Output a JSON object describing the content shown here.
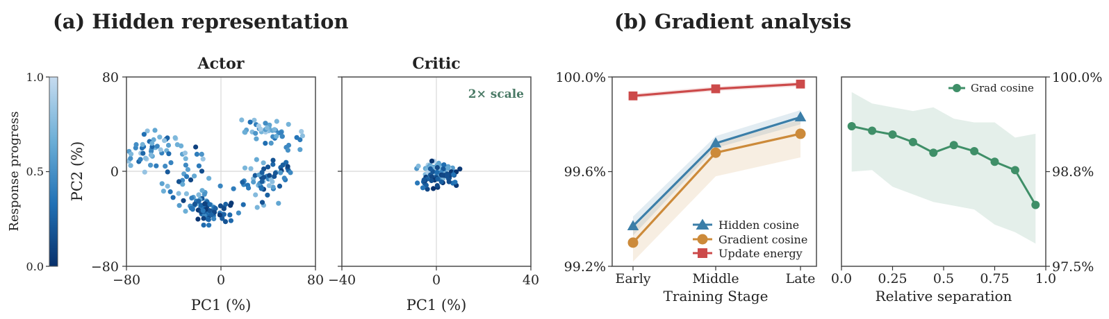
{
  "figure": {
    "panel_a_title": "(a) Hidden representation",
    "panel_b_title": "(b) Gradient analysis"
  },
  "colorbar": {
    "label": "Response progress",
    "ticks": [
      "0.0",
      "0.5",
      "1.0"
    ],
    "range": [
      0,
      1
    ],
    "colors": [
      "#08306b",
      "#2171b5",
      "#6baed6",
      "#c6dbef"
    ]
  },
  "chart_data": [
    {
      "id": "actor",
      "type": "scatter",
      "title": "Actor",
      "xlabel": "PC1 (%)",
      "ylabel": "PC2 (%)",
      "xlim": [
        -80,
        80
      ],
      "ylim": [
        -80,
        80
      ],
      "xticks": [
        "−80",
        "0",
        "80"
      ],
      "yticks": [
        "−80",
        "0",
        "80"
      ],
      "crosshair": true,
      "clusters": [
        {
          "n": 55,
          "cx": -54,
          "cy": 18,
          "sx": 14,
          "sy": 10,
          "c": [
            0.2,
            0.9
          ]
        },
        {
          "n": 40,
          "cx": -26,
          "cy": -14,
          "sx": 11,
          "sy": 12,
          "c": [
            0.05,
            0.8
          ]
        },
        {
          "n": 55,
          "cx": -7,
          "cy": -33,
          "sx": 11,
          "sy": 6,
          "c": [
            0.0,
            0.5
          ]
        },
        {
          "n": 45,
          "cx": 33,
          "cy": -7,
          "sx": 9,
          "sy": 9,
          "c": [
            0.1,
            0.8
          ]
        },
        {
          "n": 40,
          "cx": 40,
          "cy": 35,
          "sx": 11,
          "sy": 5,
          "c": [
            0.3,
            0.9
          ]
        },
        {
          "n": 20,
          "cx": 55,
          "cy": 4,
          "sx": 7,
          "sy": 7,
          "c": [
            0.05,
            0.6
          ]
        }
      ]
    },
    {
      "id": "critic",
      "type": "scatter",
      "title": "Critic",
      "xlabel": "PC1 (%)",
      "ylabel": "",
      "xlim": [
        -40,
        40
      ],
      "ylim": [
        -40,
        40
      ],
      "xticks": [
        "−40",
        "0",
        "40"
      ],
      "annotation": "2× scale",
      "annotation_color": "#4a7a66",
      "crosshair": true,
      "clusters": [
        {
          "n": 80,
          "cx": 1,
          "cy": 0,
          "sx": 3,
          "sy": 1.6,
          "c": [
            0.5,
            0.95
          ]
        },
        {
          "n": 40,
          "cx": 2,
          "cy": -2.5,
          "sx": 4,
          "sy": 2,
          "c": [
            0.0,
            0.5
          ]
        },
        {
          "n": 8,
          "cx": -6,
          "cy": -5,
          "sx": 2,
          "sy": 2,
          "c": [
            0.0,
            0.4
          ]
        }
      ]
    },
    {
      "id": "stage",
      "type": "line",
      "title": "",
      "xlabel": "Training Stage",
      "ylabel": "",
      "categories": [
        "Early",
        "Middle",
        "Late"
      ],
      "ylim": [
        99.2,
        100.0
      ],
      "yticks": [
        "99.2%",
        "99.6%",
        "100.0%"
      ],
      "legend_position": "lower-right",
      "series": [
        {
          "name": "Hidden cosine",
          "marker": "triangle",
          "color": "#3b7ea8",
          "values": [
            99.37,
            99.72,
            99.83
          ],
          "lower": [
            99.33,
            99.7,
            99.8
          ],
          "upper": [
            99.41,
            99.75,
            99.86
          ]
        },
        {
          "name": "Gradient cosine",
          "marker": "circle",
          "color": "#cc8a3a",
          "values": [
            99.3,
            99.68,
            99.76
          ],
          "lower": [
            99.22,
            99.58,
            99.66
          ],
          "upper": [
            99.36,
            99.72,
            99.82
          ]
        },
        {
          "name": "Update energy",
          "marker": "square",
          "color": "#cc4a4a",
          "values": [
            99.92,
            99.95,
            99.97
          ],
          "lower": [
            99.91,
            99.94,
            99.96
          ],
          "upper": [
            99.93,
            99.96,
            99.98
          ]
        }
      ]
    },
    {
      "id": "separation",
      "type": "line",
      "title": "",
      "xlabel": "Relative separation",
      "ylabel": "",
      "xlim": [
        0.0,
        1.0
      ],
      "xticks": [
        "0.0",
        "0.25",
        "0.5",
        "0.75",
        "1.0"
      ],
      "ylim": [
        97.5,
        100.0
      ],
      "yticks": [
        "97.5%",
        "98.8%",
        "100.0%"
      ],
      "legend_position": "top-right",
      "series": [
        {
          "name": "Grad cosine",
          "marker": "circle",
          "color": "#3f8f68",
          "x": [
            0.05,
            0.15,
            0.25,
            0.35,
            0.45,
            0.55,
            0.65,
            0.75,
            0.85,
            0.95
          ],
          "values": [
            99.35,
            99.29,
            99.24,
            99.14,
            99.0,
            99.1,
            99.02,
            98.88,
            98.77,
            98.31
          ],
          "lower": [
            98.75,
            98.77,
            98.55,
            98.45,
            98.35,
            98.3,
            98.25,
            98.05,
            97.95,
            97.8
          ],
          "upper": [
            99.8,
            99.65,
            99.6,
            99.55,
            99.6,
            99.45,
            99.4,
            99.4,
            99.2,
            99.25
          ]
        }
      ]
    }
  ]
}
